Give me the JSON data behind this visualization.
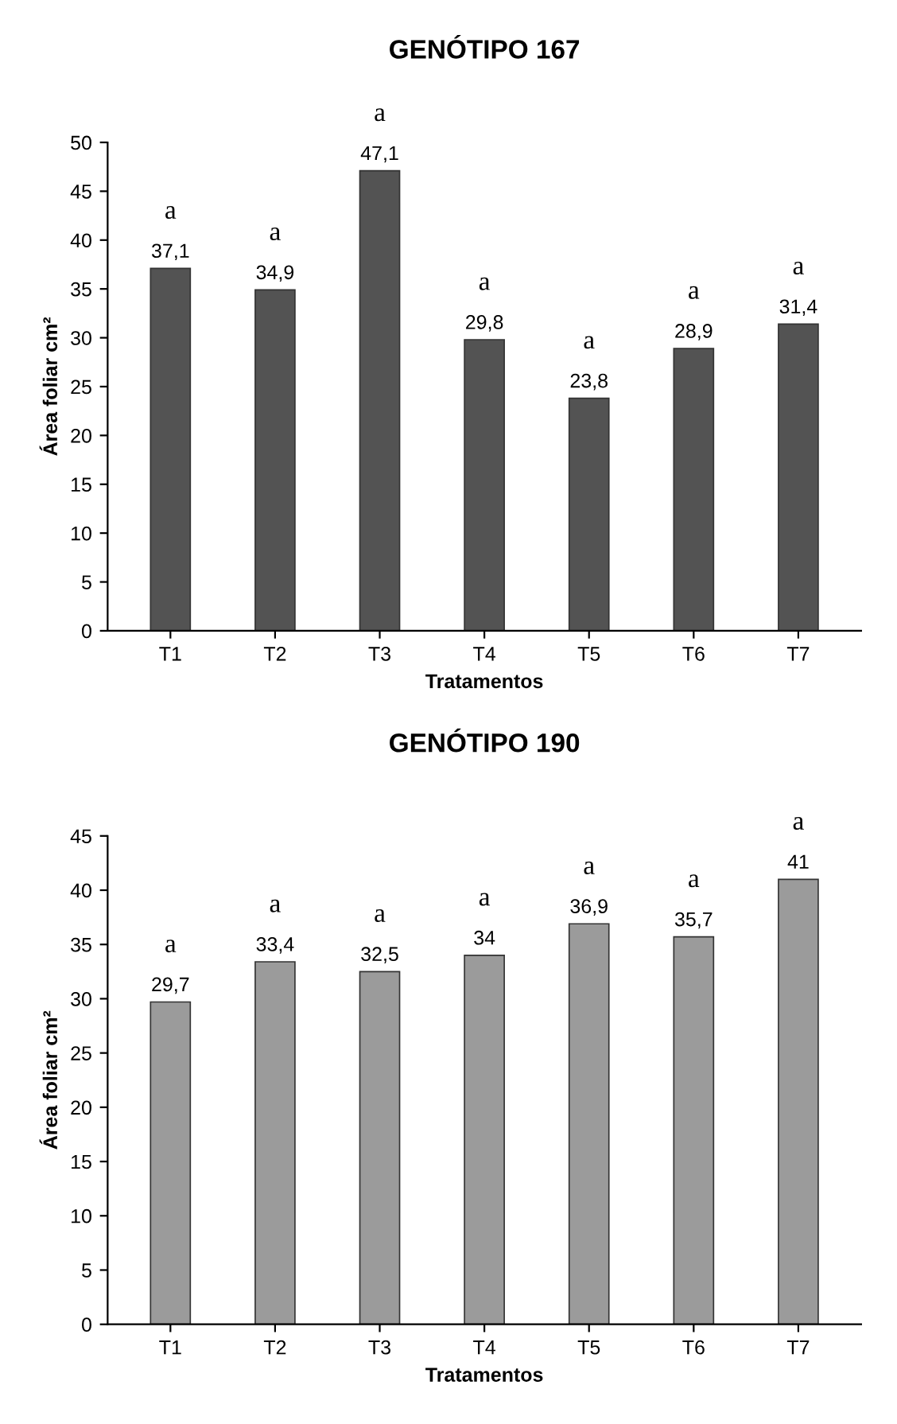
{
  "chart_data": [
    {
      "type": "bar",
      "title": "GENÓTIPO 167",
      "xlabel": "Tratamentos",
      "ylabel": "Área foliar cm²",
      "categories": [
        "T1",
        "T2",
        "T3",
        "T4",
        "T5",
        "T6",
        "T7"
      ],
      "values": [
        37.1,
        34.9,
        47.1,
        29.8,
        23.8,
        28.9,
        31.4
      ],
      "value_labels": [
        "37,1",
        "34,9",
        "47,1",
        "29,8",
        "23,8",
        "28,9",
        "31,4"
      ],
      "color": "#535353",
      "ylim": [
        0,
        50
      ],
      "yticks": [
        0,
        5,
        10,
        15,
        20,
        25,
        30,
        35,
        40,
        45,
        50
      ],
      "grid": false,
      "legend": false,
      "annotations": [
        "a",
        "a",
        "a",
        "a",
        "a",
        "a",
        "a"
      ]
    },
    {
      "type": "bar",
      "title": "GENÓTIPO 190",
      "xlabel": "Tratamentos",
      "ylabel": "Área foliar cm²",
      "categories": [
        "T1",
        "T2",
        "T3",
        "T4",
        "T5",
        "T6",
        "T7"
      ],
      "values": [
        29.7,
        33.4,
        32.5,
        34,
        36.9,
        35.7,
        41
      ],
      "value_labels": [
        "29,7",
        "33,4",
        "32,5",
        "34",
        "36,9",
        "35,7",
        "41"
      ],
      "color": "#9b9b9b",
      "ylim": [
        0,
        45
      ],
      "yticks": [
        0,
        5,
        10,
        15,
        20,
        25,
        30,
        35,
        40,
        45
      ],
      "grid": false,
      "legend": false,
      "annotations": [
        "a",
        "a",
        "a",
        "a",
        "a",
        "a",
        "a"
      ]
    }
  ]
}
